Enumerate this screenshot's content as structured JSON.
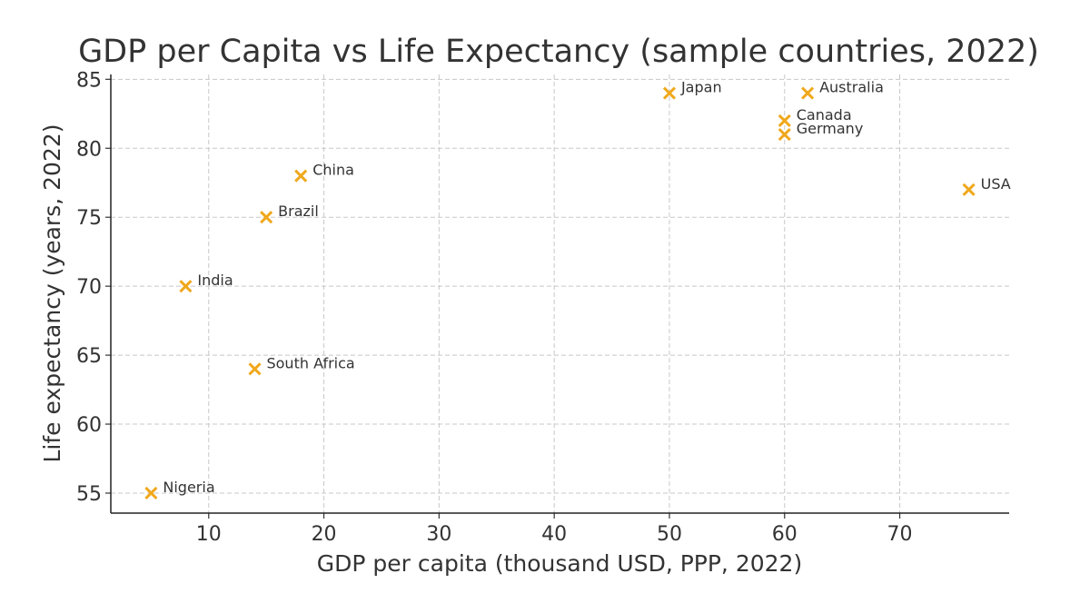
{
  "chart_data": {
    "type": "scatter",
    "title": "GDP per Capita vs Life Expectancy (sample countries, 2022)",
    "xlabel": "GDP per capita (thousand USD, PPP, 2022)",
    "ylabel": "Life expectancy (years, 2022)",
    "xlim": [
      1.5,
      79.5
    ],
    "ylim": [
      53.55,
      85.35
    ],
    "xticks": [
      10,
      20,
      30,
      40,
      50,
      60,
      70
    ],
    "yticks": [
      55,
      60,
      65,
      70,
      75,
      80,
      85
    ],
    "grid": true,
    "marker": "x",
    "color": "#f0a81c",
    "points": [
      {
        "label": "Nigeria",
        "x": 5,
        "y": 55
      },
      {
        "label": "India",
        "x": 8,
        "y": 70
      },
      {
        "label": "South Africa",
        "x": 14,
        "y": 64
      },
      {
        "label": "Brazil",
        "x": 15,
        "y": 75
      },
      {
        "label": "China",
        "x": 18,
        "y": 78
      },
      {
        "label": "Japan",
        "x": 50,
        "y": 84
      },
      {
        "label": "Canada",
        "x": 60,
        "y": 82
      },
      {
        "label": "Germany",
        "x": 60,
        "y": 81
      },
      {
        "label": "Australia",
        "x": 62,
        "y": 84
      },
      {
        "label": "USA",
        "x": 76,
        "y": 77
      }
    ]
  }
}
